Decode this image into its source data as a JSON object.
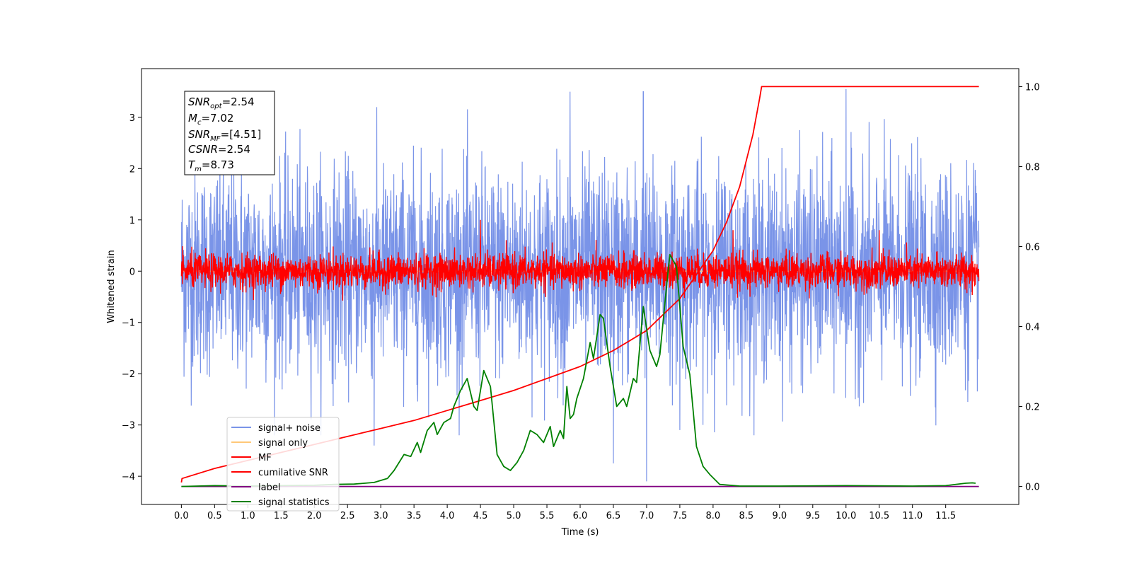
{
  "chart_data": {
    "type": "line",
    "title": "",
    "xlabel": "Time (s)",
    "ylabel": "Whitened strain",
    "y2label": "",
    "xlim": [
      -0.6,
      12.6
    ],
    "ylim": [
      -4.55,
      3.95
    ],
    "y2lim": [
      -0.045,
      1.045
    ],
    "xticks": [
      "0.0",
      "0.5",
      "1.0",
      "1.5",
      "2.0",
      "2.5",
      "3.0",
      "3.5",
      "4.0",
      "4.5",
      "5.0",
      "5.5",
      "6.0",
      "6.5",
      "7.0",
      "7.5",
      "8.0",
      "8.5",
      "9.0",
      "9.5",
      "10.0",
      "10.5",
      "11.0",
      "11.5"
    ],
    "yticks": [
      "3",
      "2",
      "1",
      "0",
      "−1",
      "−2",
      "−3",
      "−4"
    ],
    "y2ticks": [
      "1.0",
      "0.8",
      "0.6",
      "0.4",
      "0.2",
      "0.0"
    ],
    "legend_position": "lower-left",
    "colors": {
      "signal_noise": "#7a94e8",
      "signal_only": "#ffc878",
      "mf": "#ff0000",
      "cumulative_snr": "#ff0000",
      "label": "#800080",
      "signal_statistics": "#008000"
    },
    "info_box": {
      "snr_opt": {
        "sym": "SNR",
        "sub": "opt",
        "val": "=2.54"
      },
      "mc": {
        "sym": "M",
        "sub": "c",
        "val": "=7.02"
      },
      "snr_mf": {
        "sym": "SNR",
        "sub": "MF",
        "val": "=[4.51]"
      },
      "csnr": {
        "sym": "CSNR",
        "sub": "",
        "val": "=2.54"
      },
      "tm": {
        "sym": "T",
        "sub": "m",
        "val": "=8.73"
      }
    },
    "series": [
      {
        "name": "signal+ noise",
        "axis": "left",
        "kind": "noise",
        "x_range": [
          0,
          12
        ],
        "amplitude_typical": 1.6,
        "peaks": [
          [
            0.05,
            2.9
          ],
          [
            2.9,
            -3.4
          ],
          [
            5.85,
            3.5
          ],
          [
            6.95,
            3.5
          ],
          [
            7.0,
            -4.1
          ],
          [
            10.0,
            3.55
          ],
          [
            6.5,
            -3.75
          ],
          [
            7.5,
            -3.1
          ]
        ]
      },
      {
        "name": "signal only",
        "axis": "left",
        "kind": "flat",
        "x": [
          0,
          12
        ],
        "y": [
          0,
          0
        ]
      },
      {
        "name": "MF",
        "axis": "left",
        "kind": "noise",
        "x_range": [
          0,
          12
        ],
        "amplitude_typical": 0.35,
        "peaks": [
          [
            4.5,
            1.0
          ],
          [
            8.3,
            0.8
          ],
          [
            10.5,
            0.8
          ]
        ]
      },
      {
        "name": "cumilative SNR",
        "axis": "right",
        "kind": "curve",
        "x": [
          0,
          0.01,
          0.5,
          1.0,
          1.5,
          2.0,
          2.5,
          3.0,
          3.5,
          4.0,
          4.5,
          5.0,
          5.5,
          6.0,
          6.5,
          7.0,
          7.5,
          8.0,
          8.2,
          8.4,
          8.6,
          8.7,
          8.73,
          9.0,
          10.0,
          11.0,
          12.0
        ],
        "y": [
          0.01,
          0.02,
          0.045,
          0.065,
          0.085,
          0.105,
          0.125,
          0.145,
          0.165,
          0.19,
          0.215,
          0.24,
          0.27,
          0.3,
          0.34,
          0.39,
          0.47,
          0.59,
          0.66,
          0.75,
          0.88,
          0.97,
          1.0,
          1.0,
          1.0,
          1.0,
          1.0
        ]
      },
      {
        "name": "label",
        "axis": "right",
        "kind": "curve",
        "x": [
          0,
          12
        ],
        "y": [
          0.0,
          0.0
        ]
      },
      {
        "name": "signal statistics",
        "axis": "right",
        "kind": "curve",
        "x": [
          0,
          0.5,
          1.0,
          1.5,
          2.0,
          2.3,
          2.6,
          2.9,
          3.1,
          3.2,
          3.35,
          3.45,
          3.55,
          3.6,
          3.7,
          3.8,
          3.85,
          3.95,
          4.05,
          4.1,
          4.2,
          4.3,
          4.4,
          4.45,
          4.55,
          4.65,
          4.75,
          4.85,
          4.95,
          5.05,
          5.15,
          5.25,
          5.35,
          5.45,
          5.55,
          5.6,
          5.7,
          5.75,
          5.8,
          5.85,
          5.9,
          5.95,
          6.05,
          6.15,
          6.2,
          6.3,
          6.35,
          6.45,
          6.55,
          6.65,
          6.7,
          6.8,
          6.85,
          6.95,
          7.05,
          7.15,
          7.2,
          7.3,
          7.35,
          7.45,
          7.55,
          7.65,
          7.75,
          7.85,
          7.95,
          8.1,
          8.4,
          9.0,
          10.0,
          11.0,
          11.5,
          11.8,
          11.9,
          11.95
        ],
        "y": [
          0.0,
          0.002,
          0.001,
          0.002,
          0.003,
          0.005,
          0.006,
          0.01,
          0.02,
          0.04,
          0.08,
          0.075,
          0.11,
          0.085,
          0.14,
          0.16,
          0.13,
          0.16,
          0.17,
          0.2,
          0.24,
          0.27,
          0.2,
          0.19,
          0.29,
          0.25,
          0.08,
          0.05,
          0.04,
          0.06,
          0.09,
          0.14,
          0.13,
          0.11,
          0.15,
          0.1,
          0.14,
          0.12,
          0.25,
          0.17,
          0.18,
          0.22,
          0.27,
          0.36,
          0.32,
          0.43,
          0.42,
          0.3,
          0.2,
          0.22,
          0.2,
          0.27,
          0.26,
          0.45,
          0.34,
          0.3,
          0.33,
          0.5,
          0.58,
          0.55,
          0.35,
          0.28,
          0.1,
          0.05,
          0.03,
          0.005,
          0.001,
          0.001,
          0.002,
          0.001,
          0.002,
          0.008,
          0.009,
          0.008
        ]
      }
    ]
  }
}
